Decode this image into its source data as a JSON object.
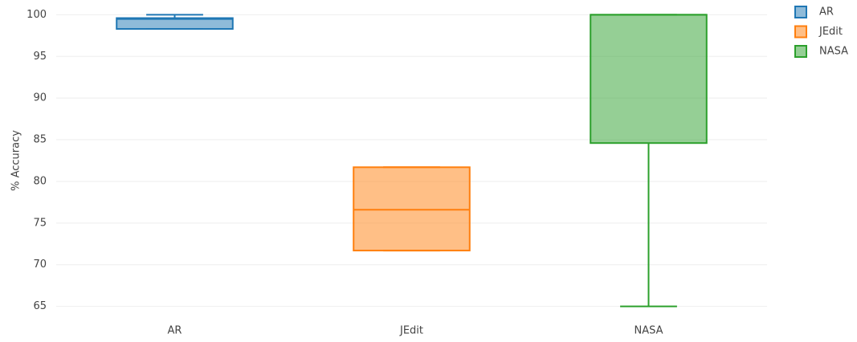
{
  "chart_data": {
    "type": "box",
    "y_label": "% Accuracy",
    "categories": [
      "AR",
      "JEdit",
      "NASA"
    ],
    "series": [
      {
        "name": "AR",
        "color": "#1f77b4",
        "min": 98.3,
        "q1": 98.3,
        "median": 99.5,
        "q3": 99.6,
        "max": 100
      },
      {
        "name": "JEdit",
        "color": "#ff7f0e",
        "min": 71.7,
        "q1": 71.7,
        "median": 76.6,
        "q3": 81.7,
        "max": 81.7
      },
      {
        "name": "NASA",
        "color": "#2ca02c",
        "min": 65,
        "q1": 84.6,
        "median": 100,
        "q3": 100,
        "max": 100
      }
    ],
    "ylim": [
      64,
      101
    ],
    "yticks": [
      65,
      70,
      75,
      80,
      85,
      90,
      95,
      100
    ],
    "grid": true,
    "legend": "right"
  }
}
